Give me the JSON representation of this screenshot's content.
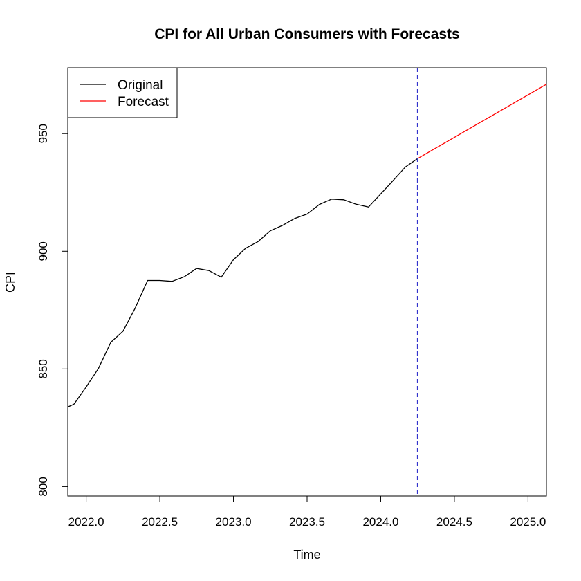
{
  "chart_data": {
    "type": "line",
    "title": "CPI for All Urban Consumers with Forecasts",
    "xlabel": "Time",
    "ylabel": "CPI",
    "xlim": [
      2021.875,
      2025.125
    ],
    "ylim": [
      796,
      978
    ],
    "x_ticks": [
      2022.0,
      2022.5,
      2023.0,
      2023.5,
      2024.0,
      2024.5,
      2025.0
    ],
    "x_tick_labels": [
      "2022.0",
      "2022.5",
      "2023.0",
      "2023.5",
      "2024.0",
      "2024.5",
      "2025.0"
    ],
    "y_ticks": [
      800,
      850,
      900,
      950
    ],
    "y_tick_labels": [
      "800",
      "850",
      "900",
      "950"
    ],
    "grid": false,
    "legend": {
      "position": "top-left",
      "entries": [
        {
          "label": "Original",
          "color": "#000000"
        },
        {
          "label": "Forecast",
          "color": "#ff0000"
        }
      ]
    },
    "vline": {
      "x": 2024.25,
      "color": "#3333cc",
      "style": "dashed"
    },
    "series": [
      {
        "name": "Original",
        "color": "#000000",
        "x": [
          2021.875,
          2021.917,
          2022.0,
          2022.083,
          2022.167,
          2022.25,
          2022.333,
          2022.417,
          2022.5,
          2022.583,
          2022.667,
          2022.75,
          2022.833,
          2022.917,
          2023.0,
          2023.083,
          2023.167,
          2023.25,
          2023.333,
          2023.417,
          2023.5,
          2023.583,
          2023.667,
          2023.75,
          2023.833,
          2023.917,
          2024.0,
          2024.083,
          2024.167,
          2024.25
        ],
        "y": [
          833.8,
          835.0,
          842.3,
          850.2,
          861.3,
          866.0,
          875.9,
          887.6,
          887.6,
          887.2,
          889.2,
          892.7,
          891.8,
          889.0,
          896.4,
          901.3,
          904.1,
          908.7,
          911.0,
          914.0,
          915.8,
          919.9,
          922.2,
          921.9,
          920.0,
          918.8,
          924.4,
          930.0,
          935.8,
          939.4
        ]
      },
      {
        "name": "Forecast",
        "color": "#ff0000",
        "x": [
          2024.25,
          2025.125
        ],
        "y": [
          939.4,
          971.0
        ]
      }
    ]
  }
}
